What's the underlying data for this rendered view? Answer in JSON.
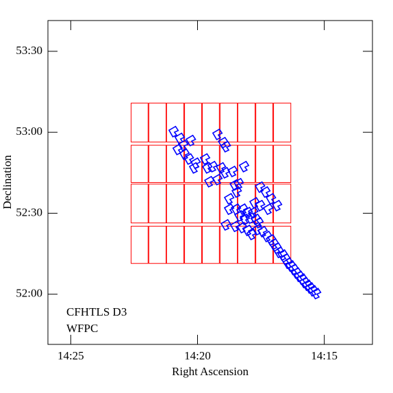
{
  "chart_data": {
    "type": "footprint",
    "xlabel": "Right Ascension",
    "ylabel": "Declination",
    "xlim": [
      25.9,
      13.1
    ],
    "ylim": [
      51.69,
      53.69
    ],
    "xticks": [
      {
        "value": 25,
        "label": "14:25"
      },
      {
        "value": 20,
        "label": "14:20"
      },
      {
        "value": 15,
        "label": "14:15"
      }
    ],
    "yticks": [
      {
        "value": 52.0,
        "label": "52:00"
      },
      {
        "value": 52.5,
        "label": "52:30"
      },
      {
        "value": 53.0,
        "label": "53:00"
      },
      {
        "value": 53.5,
        "label": "53:30"
      }
    ],
    "legend": "lower left",
    "series": [
      {
        "name": "CFHTLS D3",
        "color": "#ff0000",
        "columns": [
          [
            22.62,
            21.95
          ],
          [
            21.92,
            21.24
          ],
          [
            21.22,
            20.54
          ],
          [
            20.51,
            19.84
          ],
          [
            19.81,
            19.14
          ],
          [
            19.11,
            18.43
          ],
          [
            18.41,
            17.73
          ],
          [
            17.7,
            17.03
          ],
          [
            17.0,
            16.32
          ]
        ],
        "rows": [
          [
            53.18,
            52.94
          ],
          [
            52.92,
            52.69
          ],
          [
            52.68,
            52.44
          ],
          [
            52.42,
            52.19
          ]
        ]
      },
      {
        "name": "WFPC",
        "color": "#0000ff",
        "x": [
          20.92,
          20.68,
          20.54,
          20.24,
          20.76,
          20.49,
          20.32,
          20.05,
          20.11,
          19.68,
          19.59,
          19.38,
          19.19,
          18.97,
          18.86,
          19.05,
          18.89,
          19.51,
          19.19,
          18.51,
          18.35,
          18.14,
          18.59,
          18.43,
          18.73,
          17.51,
          17.3,
          17.08,
          16.84,
          17.73,
          17.51,
          17.19,
          18.73,
          18.46,
          18.19,
          18.0,
          17.78,
          18.32,
          18.11,
          17.89,
          17.68,
          17.57,
          18.86,
          18.49,
          18.22,
          18.0,
          17.84,
          17.62,
          17.41,
          17.24,
          17.08,
          16.97,
          16.86,
          16.76,
          16.62,
          16.51,
          16.41,
          16.3,
          16.19,
          16.08,
          15.97,
          15.86,
          15.76,
          15.65,
          15.54,
          15.43,
          15.3
        ],
        "y": [
          53.004,
          52.962,
          52.919,
          52.949,
          52.894,
          52.864,
          52.835,
          52.809,
          52.78,
          52.835,
          52.78,
          52.788,
          52.987,
          52.936,
          52.911,
          52.78,
          52.75,
          52.695,
          52.708,
          52.674,
          52.682,
          52.788,
          52.758,
          52.631,
          52.589,
          52.661,
          52.631,
          52.589,
          52.547,
          52.564,
          52.547,
          52.525,
          52.525,
          52.525,
          52.525,
          52.504,
          52.504,
          52.483,
          52.462,
          52.47,
          52.462,
          52.441,
          52.428,
          52.419,
          52.411,
          52.394,
          52.369,
          52.398,
          52.386,
          52.356,
          52.335,
          52.309,
          52.284,
          52.258,
          52.242,
          52.216,
          52.191,
          52.174,
          52.153,
          52.131,
          52.11,
          52.093,
          52.072,
          52.055,
          52.038,
          52.021,
          52.004
        ]
      }
    ]
  }
}
